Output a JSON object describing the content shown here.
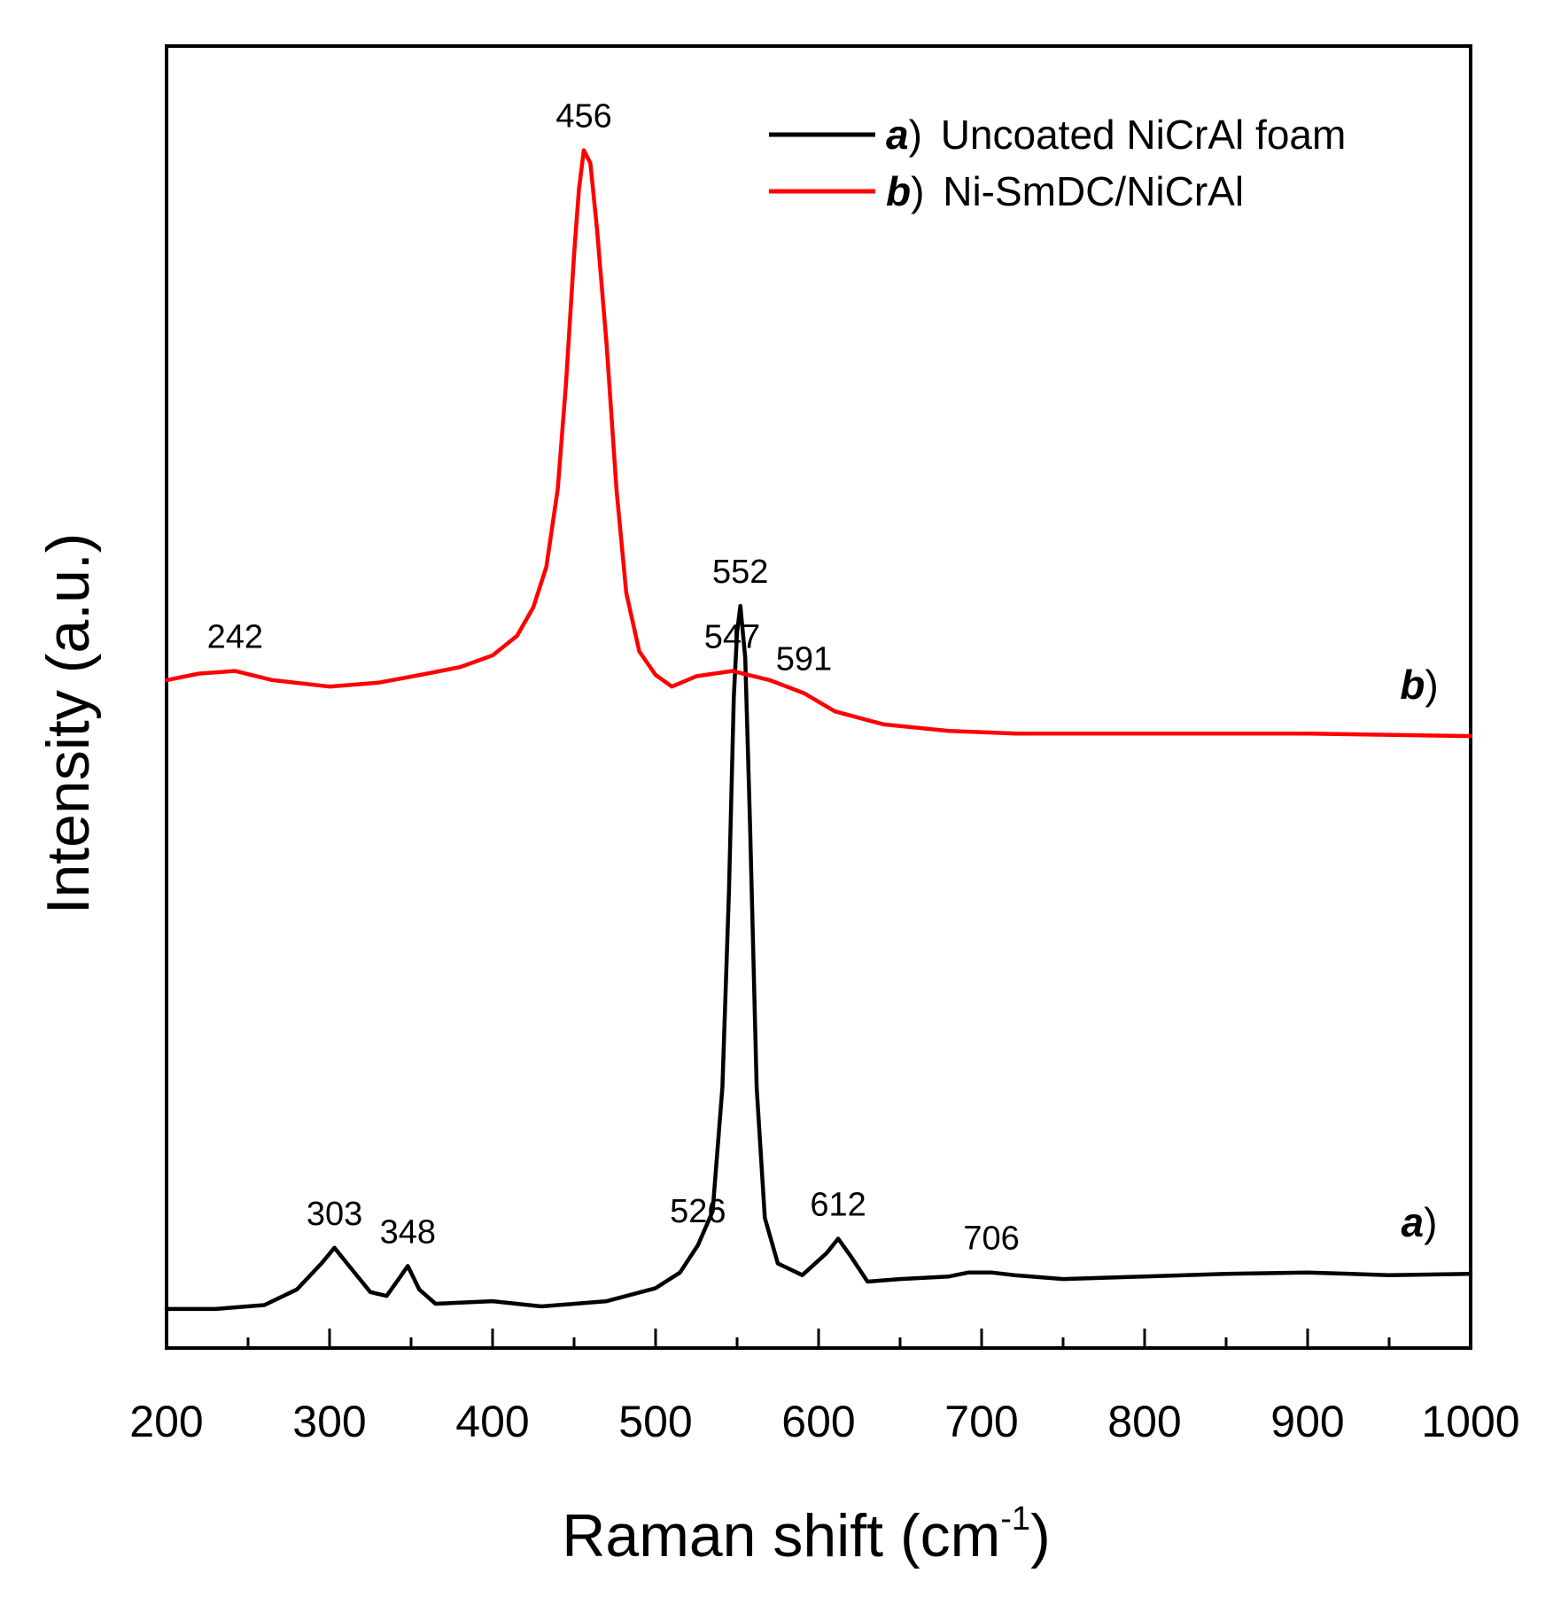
{
  "chart_data": {
    "type": "line",
    "xlabel": "Raman shift (cm",
    "xlabel_sup": "-1",
    "xlabel_end": ")",
    "ylabel": "Intensity (a.u.)",
    "xlim": [
      200,
      1000
    ],
    "ylim": [
      0,
      100
    ],
    "xticks": [
      "200",
      "300",
      "400",
      "500",
      "600",
      "700",
      "800",
      "900",
      "1000"
    ],
    "yticks_shown": false,
    "grid": false,
    "legend": {
      "position": "top-right",
      "entries": [
        {
          "tag": "a",
          "paren": ")",
          "text": "Uncoated NiCrAl foam",
          "color": "#000000"
        },
        {
          "tag": "b",
          "paren": ")",
          "text": "Ni-SmDC/NiCrAl",
          "color": "#ff0000"
        }
      ]
    },
    "series": [
      {
        "key": "a",
        "color": "#000000",
        "tag": "a",
        "tag_paren": ")",
        "peak_labels": [
          "303",
          "348",
          "526",
          "552",
          "612",
          "706"
        ],
        "peaks": [
          {
            "x": 303,
            "label": "303"
          },
          {
            "x": 348,
            "label": "348"
          },
          {
            "x": 526,
            "label": "526"
          },
          {
            "x": 552,
            "label": "552"
          },
          {
            "x": 612,
            "label": "612"
          },
          {
            "x": 706,
            "label": "706"
          }
        ],
        "points": [
          [
            200,
            3.0
          ],
          [
            230,
            3.0
          ],
          [
            260,
            3.3
          ],
          [
            280,
            4.5
          ],
          [
            295,
            6.5
          ],
          [
            303,
            7.7
          ],
          [
            312,
            6.3
          ],
          [
            325,
            4.3
          ],
          [
            335,
            4.0
          ],
          [
            343,
            5.4
          ],
          [
            348,
            6.3
          ],
          [
            355,
            4.5
          ],
          [
            365,
            3.4
          ],
          [
            400,
            3.6
          ],
          [
            430,
            3.2
          ],
          [
            470,
            3.6
          ],
          [
            500,
            4.6
          ],
          [
            515,
            5.8
          ],
          [
            526,
            7.9
          ],
          [
            535,
            10.5
          ],
          [
            541,
            20.0
          ],
          [
            545,
            35.0
          ],
          [
            548,
            50.0
          ],
          [
            550,
            55.0
          ],
          [
            552,
            57.0
          ],
          [
            555,
            53.0
          ],
          [
            558,
            40.0
          ],
          [
            562,
            20.0
          ],
          [
            567,
            10.0
          ],
          [
            575,
            6.5
          ],
          [
            590,
            5.6
          ],
          [
            605,
            7.3
          ],
          [
            612,
            8.4
          ],
          [
            620,
            7.0
          ],
          [
            630,
            5.1
          ],
          [
            650,
            5.3
          ],
          [
            680,
            5.5
          ],
          [
            692,
            5.8
          ],
          [
            706,
            5.8
          ],
          [
            720,
            5.6
          ],
          [
            750,
            5.3
          ],
          [
            800,
            5.5
          ],
          [
            850,
            5.7
          ],
          [
            900,
            5.8
          ],
          [
            950,
            5.6
          ],
          [
            1000,
            5.7
          ]
        ]
      },
      {
        "key": "b",
        "color": "#ff0000",
        "tag": "b",
        "tag_paren": ")",
        "peak_labels": [
          "242",
          "456",
          "547",
          "591"
        ],
        "peaks": [
          {
            "x": 242,
            "label": "242"
          },
          {
            "x": 456,
            "label": "456"
          },
          {
            "x": 547,
            "label": "547"
          },
          {
            "x": 591,
            "label": "591"
          }
        ],
        "points": [
          [
            200,
            51.3
          ],
          [
            220,
            51.8
          ],
          [
            242,
            52.0
          ],
          [
            265,
            51.3
          ],
          [
            300,
            50.8
          ],
          [
            330,
            51.1
          ],
          [
            360,
            51.8
          ],
          [
            380,
            52.3
          ],
          [
            400,
            53.2
          ],
          [
            415,
            54.7
          ],
          [
            425,
            56.9
          ],
          [
            433,
            60.0
          ],
          [
            440,
            66.0
          ],
          [
            445,
            74.0
          ],
          [
            450,
            84.0
          ],
          [
            453,
            89.0
          ],
          [
            456,
            92.0
          ],
          [
            460,
            91.0
          ],
          [
            464,
            86.0
          ],
          [
            470,
            77.0
          ],
          [
            476,
            66.0
          ],
          [
            482,
            58.0
          ],
          [
            490,
            53.5
          ],
          [
            500,
            51.7
          ],
          [
            510,
            50.8
          ],
          [
            525,
            51.6
          ],
          [
            547,
            52.0
          ],
          [
            570,
            51.3
          ],
          [
            591,
            50.3
          ],
          [
            610,
            48.9
          ],
          [
            640,
            47.9
          ],
          [
            680,
            47.4
          ],
          [
            720,
            47.2
          ],
          [
            800,
            47.2
          ],
          [
            900,
            47.2
          ],
          [
            1000,
            47.0
          ]
        ]
      }
    ]
  }
}
